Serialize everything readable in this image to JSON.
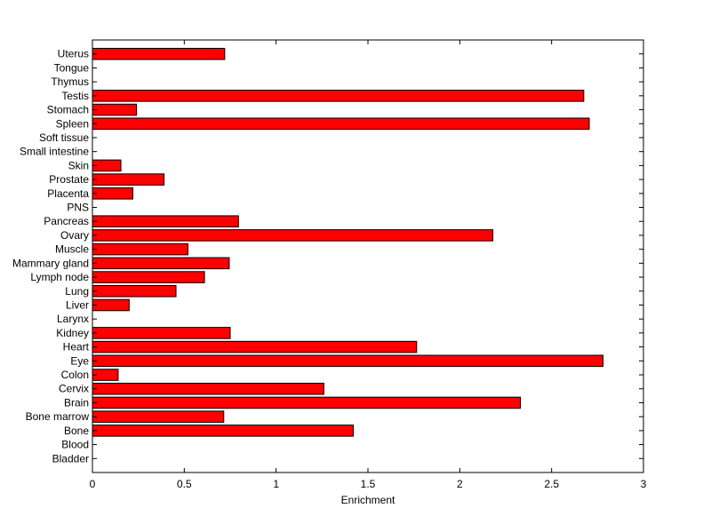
{
  "chart_data": {
    "type": "bar",
    "orientation": "horizontal",
    "xlabel": "Enrichment",
    "ylabel": "",
    "xlim": [
      0,
      3
    ],
    "xticks": [
      "0",
      "0.5",
      "1",
      "1.5",
      "2",
      "2.5",
      "3"
    ],
    "grid": false,
    "bar_color": "#ff0000",
    "categories": [
      "Bladder",
      "Blood",
      "Bone",
      "Bone marrow",
      "Brain",
      "Cervix",
      "Colon",
      "Eye",
      "Heart",
      "Kidney",
      "Larynx",
      "Liver",
      "Lung",
      "Lymph node",
      "Mammary gland",
      "Muscle",
      "Ovary",
      "Pancreas",
      "PNS",
      "Placenta",
      "Prostate",
      "Skin",
      "Small intestine",
      "Soft tissue",
      "Spleen",
      "Stomach",
      "Testis",
      "Thymus",
      "Tongue",
      "Uterus"
    ],
    "values": [
      0,
      0,
      1.42,
      0.715,
      2.33,
      1.26,
      0.14,
      2.78,
      1.765,
      0.75,
      0,
      0.2,
      0.455,
      0.61,
      0.745,
      0.52,
      2.18,
      0.795,
      0,
      0.22,
      0.39,
      0.155,
      0,
      0,
      2.705,
      0.24,
      2.675,
      0,
      0,
      0.72
    ]
  }
}
